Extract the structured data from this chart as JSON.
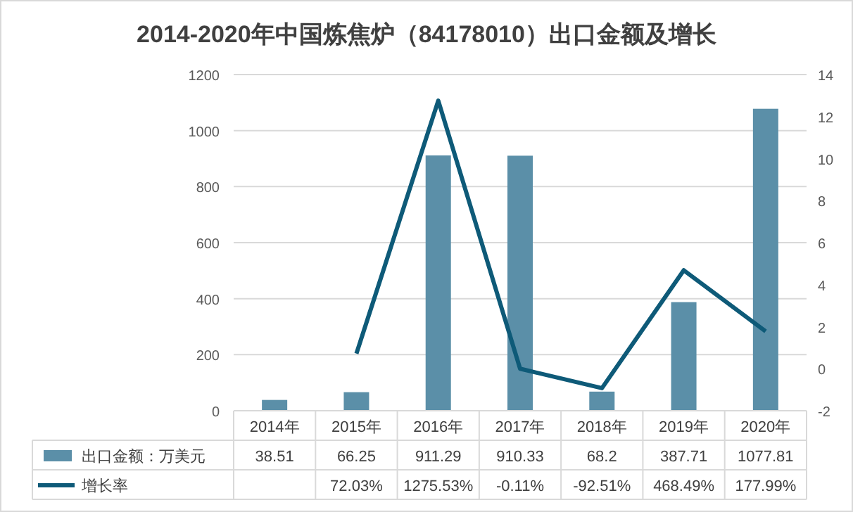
{
  "chart_data": {
    "type": "bar",
    "title": "2014-2020年中国炼焦炉（84178010）出口金额及增长",
    "categories": [
      "2014年",
      "2015年",
      "2016年",
      "2017年",
      "2018年",
      "2019年",
      "2020年"
    ],
    "series": [
      {
        "name": "出口金额：万美元",
        "color": "#5b8fa8",
        "values": [
          38.51,
          66.25,
          911.29,
          910.33,
          68.2,
          387.71,
          1077.81
        ],
        "value_labels": [
          "38.51",
          "66.25",
          "911.29",
          "910.33",
          "68.2",
          "387.71",
          "1077.81"
        ]
      },
      {
        "name": "增长率",
        "type": "line",
        "axis": "y2",
        "color": "#0e5a78",
        "values": [
          null,
          0.7203,
          12.7553,
          -0.0011,
          -0.9251,
          4.6849,
          1.7799
        ],
        "value_labels": [
          null,
          "72.03%",
          "1275.53%",
          "-0.11%",
          "-92.51%",
          "468.49%",
          "177.99%"
        ]
      }
    ],
    "ylim": [
      0,
      1200
    ],
    "yticks": [
      0,
      200,
      400,
      600,
      800,
      1000,
      1200
    ],
    "y2lim": [
      -2,
      14
    ],
    "y2ticks": [
      -2,
      0,
      2,
      4,
      6,
      8,
      10,
      12,
      14
    ],
    "grid": "y",
    "legend": "bottom",
    "line_style": "solid",
    "marker": "none"
  }
}
